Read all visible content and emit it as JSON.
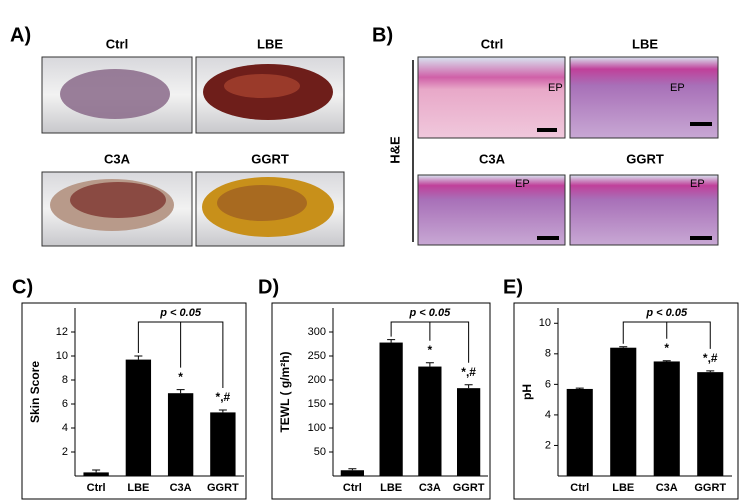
{
  "panel_labels": [
    "A)",
    "B)",
    "C)",
    "D)",
    "E)"
  ],
  "photos": {
    "labels": [
      "Ctrl",
      "LBE",
      "C3A",
      "GGRT"
    ]
  },
  "histology": {
    "stain": "H&E",
    "labels": [
      "Ctrl",
      "LBE",
      "C3A",
      "GGRT"
    ],
    "region": "EP"
  },
  "chart_data": [
    {
      "type": "bar",
      "ylabel": "Skin Score",
      "categories": [
        "Ctrl",
        "LBE",
        "C3A",
        "GGRT"
      ],
      "values": [
        0.3,
        9.7,
        6.9,
        5.3
      ],
      "errors": [
        0.2,
        0.3,
        0.3,
        0.2
      ],
      "markers": [
        null,
        null,
        "*",
        "*,#"
      ],
      "annotation": "p < 0.05",
      "color": "#000000",
      "ylim": [
        0,
        14
      ],
      "yticks": [
        2,
        4,
        6,
        8,
        10,
        12
      ]
    },
    {
      "type": "bar",
      "ylabel": "TEWL ( g/m²h)",
      "categories": [
        "Ctrl",
        "LBE",
        "C3A",
        "GGRT"
      ],
      "values": [
        12,
        278,
        228,
        183
      ],
      "errors": [
        3,
        6,
        8,
        7
      ],
      "markers": [
        null,
        null,
        "*",
        "*,#"
      ],
      "annotation": "p < 0.05",
      "color": "#000000",
      "ylim": [
        0,
        350
      ],
      "yticks": [
        50,
        100,
        150,
        200,
        250,
        300
      ]
    },
    {
      "type": "bar",
      "ylabel": "pH",
      "categories": [
        "Ctrl",
        "LBE",
        "C3A",
        "GGRT"
      ],
      "values": [
        5.7,
        8.4,
        7.5,
        6.8
      ],
      "errors": [
        0.05,
        0.06,
        0.05,
        0.08
      ],
      "markers": [
        null,
        null,
        "*",
        "*,#"
      ],
      "annotation": "p < 0.05",
      "color": "#000000",
      "ylim": [
        0,
        11
      ],
      "yticks": [
        2,
        4,
        6,
        8,
        10
      ]
    }
  ]
}
